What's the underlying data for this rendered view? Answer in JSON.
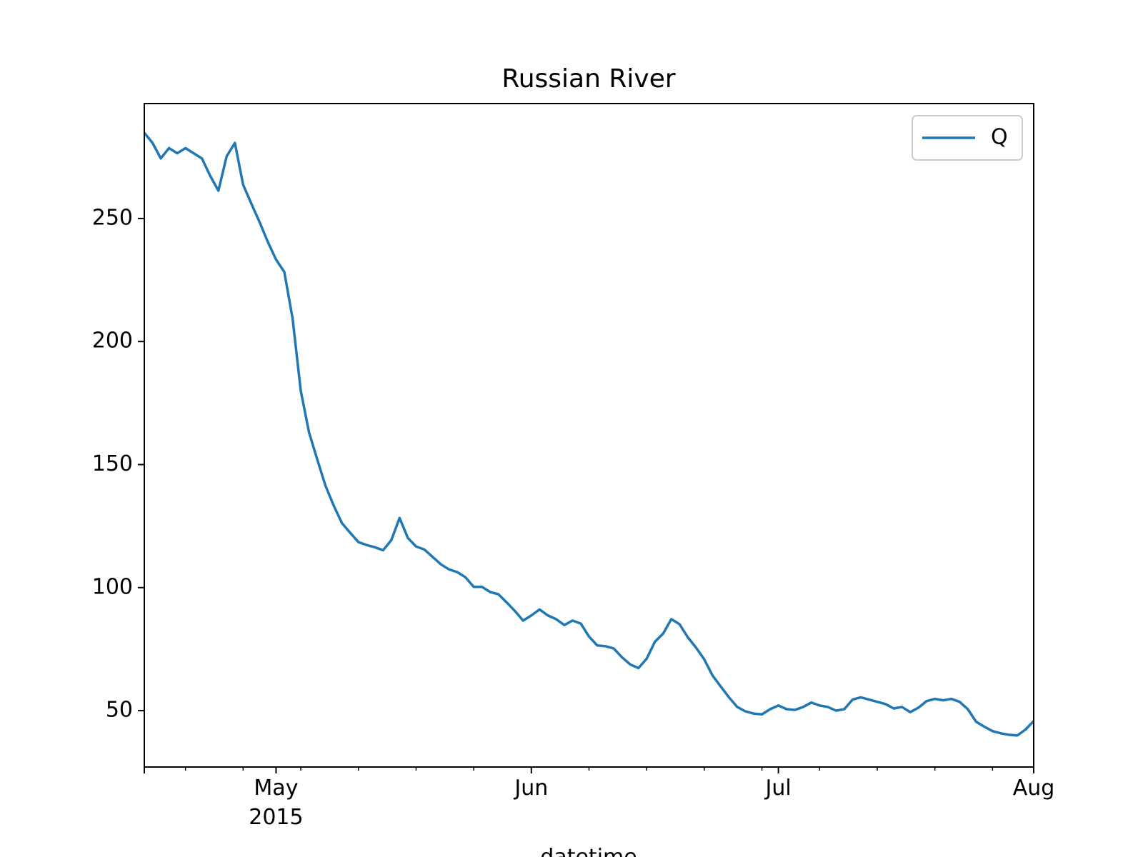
{
  "chart_data": {
    "type": "line",
    "title": "Russian River",
    "x_label": "datetime",
    "x": [
      "2015-04-15",
      "2015-04-16",
      "2015-04-17",
      "2015-04-18",
      "2015-04-19",
      "2015-04-20",
      "2015-04-21",
      "2015-04-22",
      "2015-04-23",
      "2015-04-24",
      "2015-04-25",
      "2015-04-26",
      "2015-04-27",
      "2015-04-28",
      "2015-04-29",
      "2015-04-30",
      "2015-05-01",
      "2015-05-02",
      "2015-05-03",
      "2015-05-04",
      "2015-05-05",
      "2015-05-06",
      "2015-05-07",
      "2015-05-08",
      "2015-05-09",
      "2015-05-10",
      "2015-05-11",
      "2015-05-12",
      "2015-05-13",
      "2015-05-14",
      "2015-05-15",
      "2015-05-16",
      "2015-05-17",
      "2015-05-18",
      "2015-05-19",
      "2015-05-20",
      "2015-05-21",
      "2015-05-22",
      "2015-05-23",
      "2015-05-24",
      "2015-05-25",
      "2015-05-26",
      "2015-05-27",
      "2015-05-28",
      "2015-05-29",
      "2015-05-30",
      "2015-05-31",
      "2015-06-01",
      "2015-06-02",
      "2015-06-03",
      "2015-06-04",
      "2015-06-05",
      "2015-06-06",
      "2015-06-07",
      "2015-06-08",
      "2015-06-09",
      "2015-06-10",
      "2015-06-11",
      "2015-06-12",
      "2015-06-13",
      "2015-06-14",
      "2015-06-15",
      "2015-06-16",
      "2015-06-17",
      "2015-06-18",
      "2015-06-19",
      "2015-06-20",
      "2015-06-21",
      "2015-06-22",
      "2015-06-23",
      "2015-06-24",
      "2015-06-25",
      "2015-06-26",
      "2015-06-27",
      "2015-06-28",
      "2015-06-29",
      "2015-06-30",
      "2015-07-01",
      "2015-07-02",
      "2015-07-03",
      "2015-07-04",
      "2015-07-05",
      "2015-07-06",
      "2015-07-07",
      "2015-07-08",
      "2015-07-09",
      "2015-07-10",
      "2015-07-11",
      "2015-07-12",
      "2015-07-13",
      "2015-07-14",
      "2015-07-15",
      "2015-07-16",
      "2015-07-17",
      "2015-07-18",
      "2015-07-19",
      "2015-07-20",
      "2015-07-21",
      "2015-07-22",
      "2015-07-23",
      "2015-07-24",
      "2015-07-25",
      "2015-07-26",
      "2015-07-27",
      "2015-07-28",
      "2015-07-29",
      "2015-07-30",
      "2015-07-31",
      "2015-08-01"
    ],
    "series": [
      {
        "name": "Q",
        "color": "#1f77b4",
        "values": [
          284.8,
          280.7,
          274.4,
          278.6,
          276.5,
          278.6,
          276.5,
          274.4,
          267.3,
          261.3,
          275.3,
          280.7,
          263.7,
          256,
          248.5,
          240.5,
          233.3,
          228.3,
          209.5,
          180,
          163.1,
          152.1,
          141.4,
          133.3,
          126.2,
          122.3,
          118.5,
          117.3,
          116.4,
          115.2,
          119.3,
          128.3,
          120.2,
          116.7,
          115.5,
          112.5,
          109.5,
          107.4,
          106.3,
          104.2,
          100.3,
          100.3,
          98.2,
          97.3,
          94,
          90.5,
          86.6,
          88.7,
          91.1,
          88.7,
          87.2,
          84.8,
          86.6,
          85.4,
          80.1,
          76.5,
          76.2,
          75.3,
          71.7,
          68.8,
          67.3,
          71.1,
          78,
          81.3,
          87.2,
          85.1,
          79.8,
          75.6,
          70.8,
          64.3,
          59.8,
          55.4,
          51.5,
          49.7,
          48.8,
          48.5,
          50.6,
          52.1,
          50.6,
          50.3,
          51.5,
          53.3,
          52.1,
          51.5,
          50,
          50.6,
          54.5,
          55.4,
          54.5,
          53.6,
          52.7,
          50.9,
          51.5,
          49.4,
          51.2,
          53.9,
          54.8,
          54.2,
          54.8,
          53.6,
          50.6,
          45.5,
          43.5,
          41.7,
          40.8,
          40.2,
          39.9,
          42.3,
          45.8
        ]
      }
    ],
    "xlim": [
      "2015-04-15",
      "2015-08-01"
    ],
    "xticks": [
      {
        "value": "2015-05-01",
        "label": "May\n2015"
      },
      {
        "value": "2015-06-01",
        "label": "Jun"
      },
      {
        "value": "2015-07-01",
        "label": "Jul"
      },
      {
        "value": "2015-08-01",
        "label": "Aug"
      }
    ],
    "xminorticks": [
      "2015-04-20",
      "2015-04-27",
      "2015-05-04",
      "2015-05-11",
      "2015-05-18",
      "2015-05-25",
      "2015-06-08",
      "2015-06-15",
      "2015-06-22",
      "2015-06-29",
      "2015-07-06",
      "2015-07-13",
      "2015-07-20",
      "2015-07-27"
    ],
    "ylim": [
      27.1,
      296.7
    ],
    "yticks": [
      50,
      100,
      150,
      200,
      250
    ],
    "grid": false,
    "legend": "upper right"
  }
}
